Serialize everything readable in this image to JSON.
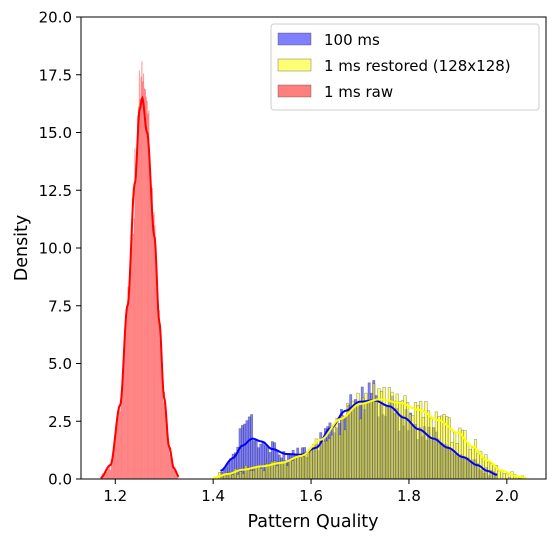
{
  "chart_data": {
    "type": "histogram",
    "xlabel": "Pattern Quality",
    "ylabel": "Density",
    "xlim": [
      1.13,
      2.08
    ],
    "ylim": [
      0,
      20
    ],
    "x_ticks": [
      "1.2",
      "1.4",
      "1.6",
      "1.8",
      "2.0"
    ],
    "y_ticks": [
      "0.0",
      "2.5",
      "5.0",
      "7.5",
      "10.0",
      "12.5",
      "15.0",
      "17.5",
      "20.0"
    ],
    "legend_position": "upper right",
    "grid": false,
    "series": [
      {
        "name": "100 ms",
        "color": "#0000ff",
        "alpha": 0.5,
        "kde": [
          [
            1.415,
            0.35
          ],
          [
            1.44,
            0.9
          ],
          [
            1.46,
            1.45
          ],
          [
            1.48,
            1.75
          ],
          [
            1.5,
            1.62
          ],
          [
            1.52,
            1.3
          ],
          [
            1.55,
            1.08
          ],
          [
            1.58,
            1.05
          ],
          [
            1.61,
            1.35
          ],
          [
            1.64,
            2.2
          ],
          [
            1.67,
            2.95
          ],
          [
            1.7,
            3.35
          ],
          [
            1.73,
            3.4
          ],
          [
            1.76,
            3.15
          ],
          [
            1.79,
            2.65
          ],
          [
            1.82,
            2.15
          ],
          [
            1.85,
            1.75
          ],
          [
            1.88,
            1.35
          ],
          [
            1.91,
            0.95
          ],
          [
            1.94,
            0.6
          ],
          [
            1.96,
            0.35
          ],
          [
            1.98,
            0.18
          ]
        ]
      },
      {
        "name": "1 ms restored (128x128)",
        "color": "#ffff00",
        "alpha": 0.55,
        "kde": [
          [
            1.4,
            0.05
          ],
          [
            1.43,
            0.22
          ],
          [
            1.46,
            0.4
          ],
          [
            1.5,
            0.55
          ],
          [
            1.54,
            0.7
          ],
          [
            1.58,
            1.0
          ],
          [
            1.62,
            1.7
          ],
          [
            1.66,
            2.6
          ],
          [
            1.7,
            3.25
          ],
          [
            1.74,
            3.45
          ],
          [
            1.78,
            3.3
          ],
          [
            1.82,
            3.0
          ],
          [
            1.86,
            2.55
          ],
          [
            1.9,
            2.0
          ],
          [
            1.93,
            1.4
          ],
          [
            1.96,
            0.8
          ],
          [
            1.99,
            0.35
          ],
          [
            2.02,
            0.12
          ],
          [
            2.04,
            0.05
          ]
        ]
      },
      {
        "name": "1 ms raw",
        "color": "#ff0000",
        "alpha": 0.5,
        "kde": [
          [
            1.17,
            0.05
          ],
          [
            1.19,
            0.6
          ],
          [
            1.21,
            3.2
          ],
          [
            1.225,
            7.5
          ],
          [
            1.24,
            12.8
          ],
          [
            1.25,
            16.0
          ],
          [
            1.255,
            16.5
          ],
          [
            1.265,
            15.0
          ],
          [
            1.28,
            10.5
          ],
          [
            1.29,
            6.8
          ],
          [
            1.3,
            3.5
          ],
          [
            1.31,
            1.4
          ],
          [
            1.32,
            0.45
          ],
          [
            1.33,
            0.1
          ]
        ]
      }
    ]
  }
}
